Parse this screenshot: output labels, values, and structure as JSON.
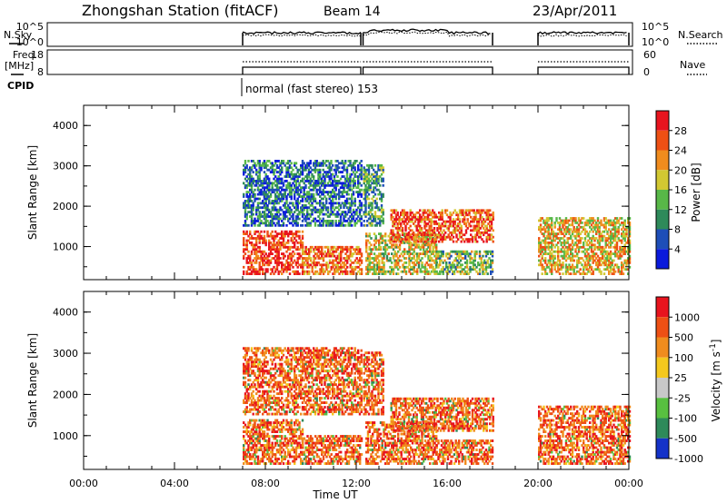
{
  "header": {
    "station": "Zhongshan Station (fitACF)",
    "beam": "Beam 14",
    "date": "23/Apr/2011"
  },
  "top_panels": {
    "nsky_label": "N.Sky",
    "nsearch_label": "N.Search",
    "freq_label": "Freq.",
    "freq_unit": "[MHz]",
    "nave_label": "Nave",
    "cpid_label": "CPID",
    "cpid_text": "normal (fast stereo) 153",
    "noise_ticks": [
      "10^5",
      "10^0"
    ],
    "freq_ticks": [
      "18",
      "8"
    ],
    "nave_ticks": [
      "60",
      "0"
    ]
  },
  "x_axis": {
    "label": "Time UT",
    "ticks": [
      "00:00",
      "04:00",
      "08:00",
      "12:00",
      "16:00",
      "20:00",
      "00:00"
    ],
    "tick_hours": [
      0,
      4,
      8,
      12,
      16,
      20,
      24
    ]
  },
  "chart_data": [
    {
      "type": "heatmap",
      "ylabel": "Slant Range [km]",
      "yticks": [
        1000,
        2000,
        3000,
        4000
      ],
      "ylim": [
        180,
        4500
      ],
      "xlim": [
        0,
        24
      ],
      "colorbar": {
        "label": "Power [dB]",
        "ticks": [
          "4",
          "8",
          "12",
          "16",
          "20",
          "24",
          "28"
        ],
        "colors": [
          "#0a1adc",
          "#1e4eb8",
          "#2e8a5a",
          "#58b848",
          "#d2c832",
          "#f08c1e",
          "#ee5014",
          "#e8141e"
        ]
      }
    },
    {
      "type": "heatmap",
      "ylabel": "Slant Range [km]",
      "yticks": [
        1000,
        2000,
        3000,
        4000
      ],
      "ylim": [
        180,
        4500
      ],
      "xlim": [
        0,
        24
      ],
      "colorbar": {
        "label": "Velocity [m s",
        "label_sup": "-1",
        "label_end": "]",
        "ticks": [
          "1000",
          "500",
          "100",
          "25",
          "-25",
          "-100",
          "-500",
          "-1000"
        ],
        "colors": [
          "#1432c8",
          "#2e8a5a",
          "#58c040",
          "#c8c8c8",
          "#f4c81e",
          "#f08c1e",
          "#ee5014",
          "#e8141e"
        ]
      }
    }
  ]
}
